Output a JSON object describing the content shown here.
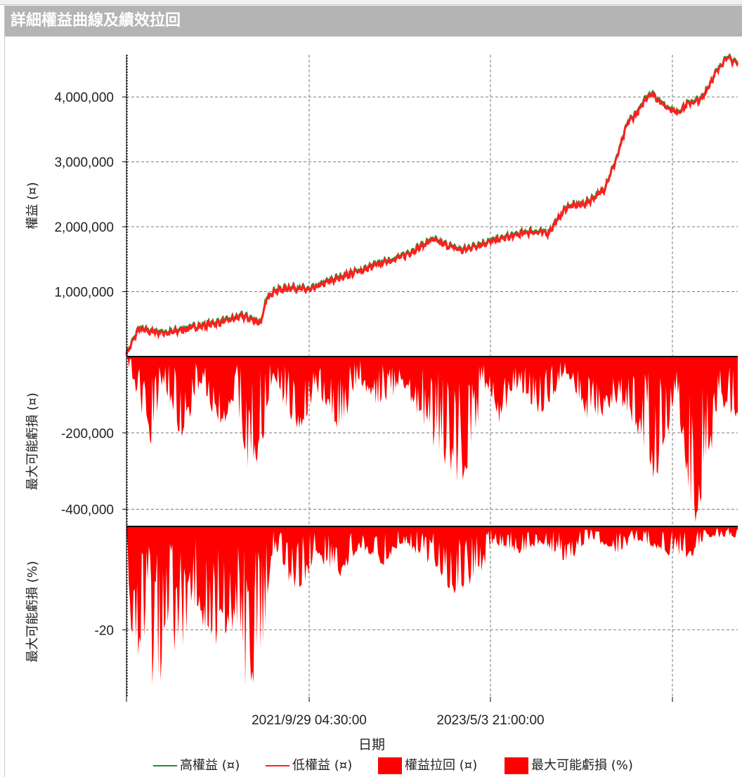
{
  "window": {
    "title": "詳細權益曲線及績效拉回"
  },
  "colors": {
    "high": "#2a8a2a",
    "low": "#ff1f1f",
    "fill": "#ff0000",
    "grid": "#7a7a7a"
  },
  "chart_data": [
    {
      "type": "line",
      "ylabel": "權益 (¤)",
      "yticks": [
        1000000,
        2000000,
        3000000,
        4000000
      ],
      "ytick_labels": [
        "1,000,000",
        "2,000,000",
        "3,000,000",
        "4,000,000"
      ],
      "ylim": [
        0,
        4650000
      ],
      "series": [
        {
          "name": "高權益 (¤)",
          "color": "#2a8a2a"
        },
        {
          "name": "低權益 (¤)",
          "color": "#ff1f1f"
        }
      ],
      "x": [
        0,
        0.02,
        0.04,
        0.07,
        0.1,
        0.13,
        0.16,
        0.19,
        0.22,
        0.23,
        0.24,
        0.27,
        0.3,
        0.33,
        0.36,
        0.39,
        0.42,
        0.45,
        0.48,
        0.5,
        0.52,
        0.55,
        0.57,
        0.6,
        0.63,
        0.66,
        0.69,
        0.72,
        0.75,
        0.78,
        0.8,
        0.82,
        0.84,
        0.85,
        0.86,
        0.875,
        0.9,
        0.92,
        0.94,
        0.96,
        0.98,
        1.0
      ],
      "values": [
        30000,
        420000,
        380000,
        360000,
        430000,
        480000,
        540000,
        620000,
        520000,
        900000,
        1000000,
        1060000,
        1020000,
        1150000,
        1250000,
        1340000,
        1450000,
        1530000,
        1680000,
        1800000,
        1720000,
        1630000,
        1700000,
        1780000,
        1850000,
        1920000,
        1900000,
        2300000,
        2350000,
        2550000,
        3000000,
        3600000,
        3800000,
        4000000,
        4050000,
        3900000,
        3750000,
        3900000,
        3950000,
        4300000,
        4600000,
        4520000
      ],
      "grid": true
    },
    {
      "type": "area",
      "ylabel": "最大可能虧損 (¤)",
      "yticks": [
        -200000,
        -400000
      ],
      "ytick_labels": [
        "-200,000",
        "-400,000"
      ],
      "ylim": [
        -445000,
        0
      ],
      "series": [
        {
          "name": "權益拉回 (¤)",
          "color": "#ff0000"
        }
      ],
      "x": [
        0,
        0.04,
        0.06,
        0.09,
        0.12,
        0.15,
        0.18,
        0.2,
        0.22,
        0.24,
        0.28,
        0.31,
        0.35,
        0.38,
        0.42,
        0.45,
        0.5,
        0.54,
        0.57,
        0.58,
        0.61,
        0.64,
        0.68,
        0.72,
        0.76,
        0.8,
        0.84,
        0.87,
        0.9,
        0.92,
        0.93,
        0.95,
        0.97,
        1.0
      ],
      "values": [
        -5000,
        -220000,
        -60000,
        -210000,
        -80000,
        -180000,
        -120000,
        -280000,
        -240000,
        -50000,
        -200000,
        -90000,
        -190000,
        -60000,
        -140000,
        -60000,
        -230000,
        -320000,
        -250000,
        -60000,
        -160000,
        -80000,
        -150000,
        -40000,
        -170000,
        -110000,
        -200000,
        -340000,
        -80000,
        -360000,
        -430000,
        -310000,
        -110000,
        -170000
      ],
      "grid": true
    },
    {
      "type": "area",
      "ylabel": "最大可能虧損 (%)",
      "yticks": [
        -20
      ],
      "ytick_labels": [
        "-20"
      ],
      "ylim": [
        -33,
        0
      ],
      "series": [
        {
          "name": "最大可能虧損 (%)",
          "color": "#ff0000"
        }
      ],
      "x": [
        0,
        0.01,
        0.03,
        0.05,
        0.07,
        0.09,
        0.11,
        0.14,
        0.17,
        0.2,
        0.22,
        0.24,
        0.28,
        0.31,
        0.35,
        0.38,
        0.42,
        0.45,
        0.5,
        0.54,
        0.57,
        0.6,
        0.64,
        0.68,
        0.72,
        0.76,
        0.8,
        0.84,
        0.88,
        0.92,
        0.95,
        1.0
      ],
      "values": [
        -3,
        -25,
        -20,
        -33,
        -15,
        -31,
        -14,
        -22,
        -18,
        -31,
        -25,
        -4,
        -13,
        -6,
        -9,
        -4,
        -7,
        -3,
        -7,
        -14,
        -11,
        -3,
        -5,
        -3,
        -7,
        -2,
        -5,
        -3,
        -5,
        -6,
        -2,
        -2
      ],
      "grid": true
    }
  ],
  "xaxis": {
    "label": "日期",
    "tick_labels": [
      "2021/9/29 04:30:00",
      "2023/5/3 21:00:00"
    ]
  },
  "legend": {
    "high": "高權益 (¤)",
    "low": "低權益 (¤)",
    "drawdown": "權益拉回 (¤)",
    "maxloss": "最大可能虧損 (%)"
  }
}
